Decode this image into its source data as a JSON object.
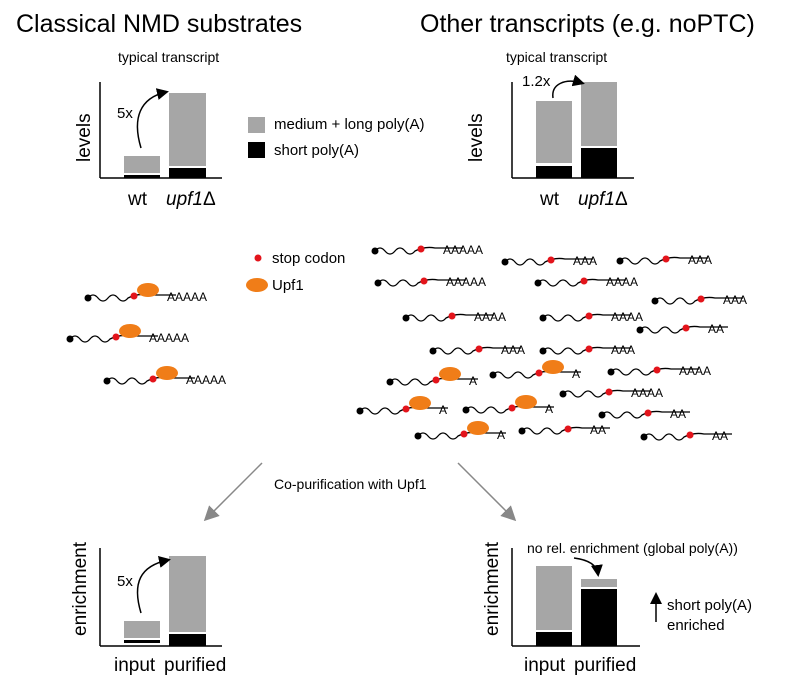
{
  "left_title": "Classical NMD substrates",
  "right_title": "Other transcripts (e.g. noPTC)",
  "typical_transcript": "typical transcript",
  "levels_label": "levels",
  "enrichment_label": "enrichment",
  "x_wt": "wt",
  "x_upf1": "upf1",
  "x_delta": "Δ",
  "x_input": "input",
  "x_purified": "purified",
  "fold_5x": "5x",
  "fold_1_2x": "1.2x",
  "legend": {
    "medium_long": "medium + long poly(A)",
    "short": "short poly(A)",
    "stop_codon": "stop codon",
    "upf1": "Upf1"
  },
  "copurification": "Co-purification with Upf1",
  "no_rel_enrichment": "no rel. enrichment (global poly(A))",
  "short_polya_enriched_1": "short poly(A)",
  "short_polya_enriched_2": "enriched",
  "tails": {
    "AAAAA": "AAAAA",
    "AAAA": "AAAA",
    "AAA": "AAA",
    "AA": "AA",
    "A": "A"
  },
  "colors": {
    "grey": "#a6a6a6",
    "black": "#000000",
    "stop": "#e3141b",
    "upf1": "#f07d18",
    "arrow": "#888888"
  }
}
